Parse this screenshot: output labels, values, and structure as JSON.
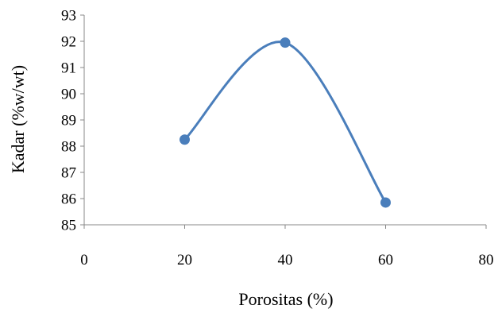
{
  "chart_data": {
    "type": "line",
    "smooth": true,
    "markers": true,
    "title": "",
    "xlabel": "Porositas (%)",
    "ylabel": "Kadar (%w/wt)",
    "xlim": [
      0,
      80
    ],
    "ylim": [
      85,
      93
    ],
    "xticks": [
      "0",
      "20",
      "40",
      "60",
      "80"
    ],
    "yticks": [
      "85",
      "86",
      "87",
      "88",
      "89",
      "90",
      "91",
      "92",
      "93"
    ],
    "grid": false,
    "legend": "none",
    "series": [
      {
        "x": [
          20,
          40,
          60
        ],
        "y": [
          88.25,
          91.95,
          85.85
        ],
        "color": "#4A7EBB"
      }
    ]
  }
}
